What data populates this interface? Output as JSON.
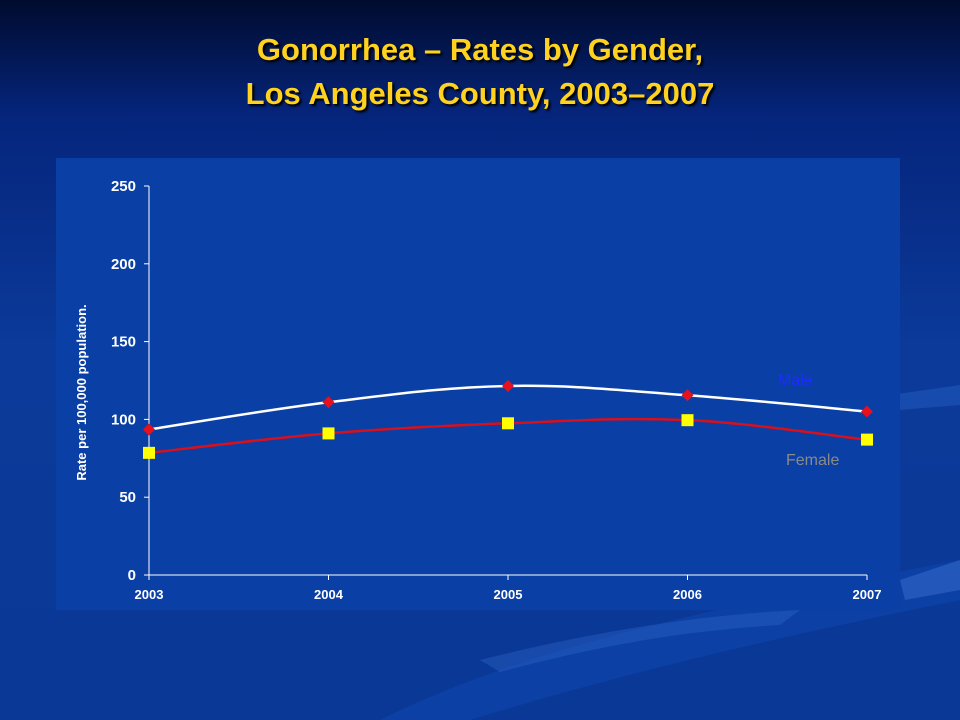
{
  "slide": {
    "title_line1": "Gonorrhea – Rates by Gender,",
    "title_line2": "Los Angeles County, 2003–2007"
  },
  "chart_data": {
    "type": "line",
    "x": [
      "2003",
      "2004",
      "2005",
      "2006",
      "2007"
    ],
    "ylabel": "Rate per 100,000 population.",
    "xlabel": "",
    "ylim": [
      0,
      250
    ],
    "yticks": [
      0,
      50,
      100,
      150,
      200,
      250
    ],
    "grid": false,
    "series": [
      {
        "name": "Male",
        "values": [
          93.5,
          111,
          121.5,
          115.5,
          105
        ],
        "line_color": "#ffffff",
        "marker": "diamond",
        "marker_color": "#e8101c",
        "label_color": "#1d2cff"
      },
      {
        "name": "Female",
        "values": [
          78.5,
          91,
          97.5,
          99.5,
          87
        ],
        "line_color": "#d8101c",
        "marker": "square",
        "marker_color": "#ffff00",
        "label_color": "#8a8a8a"
      }
    ]
  }
}
